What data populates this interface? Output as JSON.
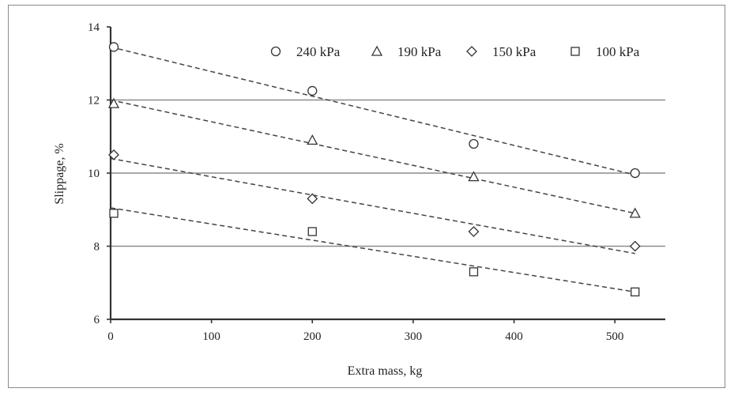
{
  "chart_data": {
    "type": "scatter",
    "xlabel": "Extra mass,  kg",
    "ylabel": "Slippage,   %",
    "xlim": [
      0,
      550
    ],
    "ylim": [
      6,
      14
    ],
    "xticks": [
      0,
      100,
      200,
      300,
      400,
      500
    ],
    "yticks": [
      6,
      8,
      10,
      12,
      14
    ],
    "grid": "horizontal",
    "legend_position": "top-right",
    "series": [
      {
        "name": "240 kPa",
        "marker": "circle",
        "x": [
          0,
          200,
          360,
          520
        ],
        "y": [
          13.45,
          12.25,
          10.8,
          10.0
        ],
        "trend": [
          13.45,
          9.95
        ]
      },
      {
        "name": "190 kPa",
        "marker": "triangle",
        "x": [
          0,
          200,
          360,
          520
        ],
        "y": [
          11.9,
          10.9,
          9.9,
          8.9
        ],
        "trend": [
          12.0,
          8.9
        ]
      },
      {
        "name": "150 kPa",
        "marker": "diamond",
        "x": [
          0,
          200,
          360,
          520
        ],
        "y": [
          10.5,
          9.3,
          8.4,
          8.0
        ],
        "trend": [
          10.4,
          7.8
        ]
      },
      {
        "name": "100 kPa",
        "marker": "square",
        "x": [
          0,
          200,
          360,
          520
        ],
        "y": [
          8.9,
          8.4,
          7.3,
          6.75
        ],
        "trend": [
          9.05,
          6.75
        ]
      }
    ]
  }
}
